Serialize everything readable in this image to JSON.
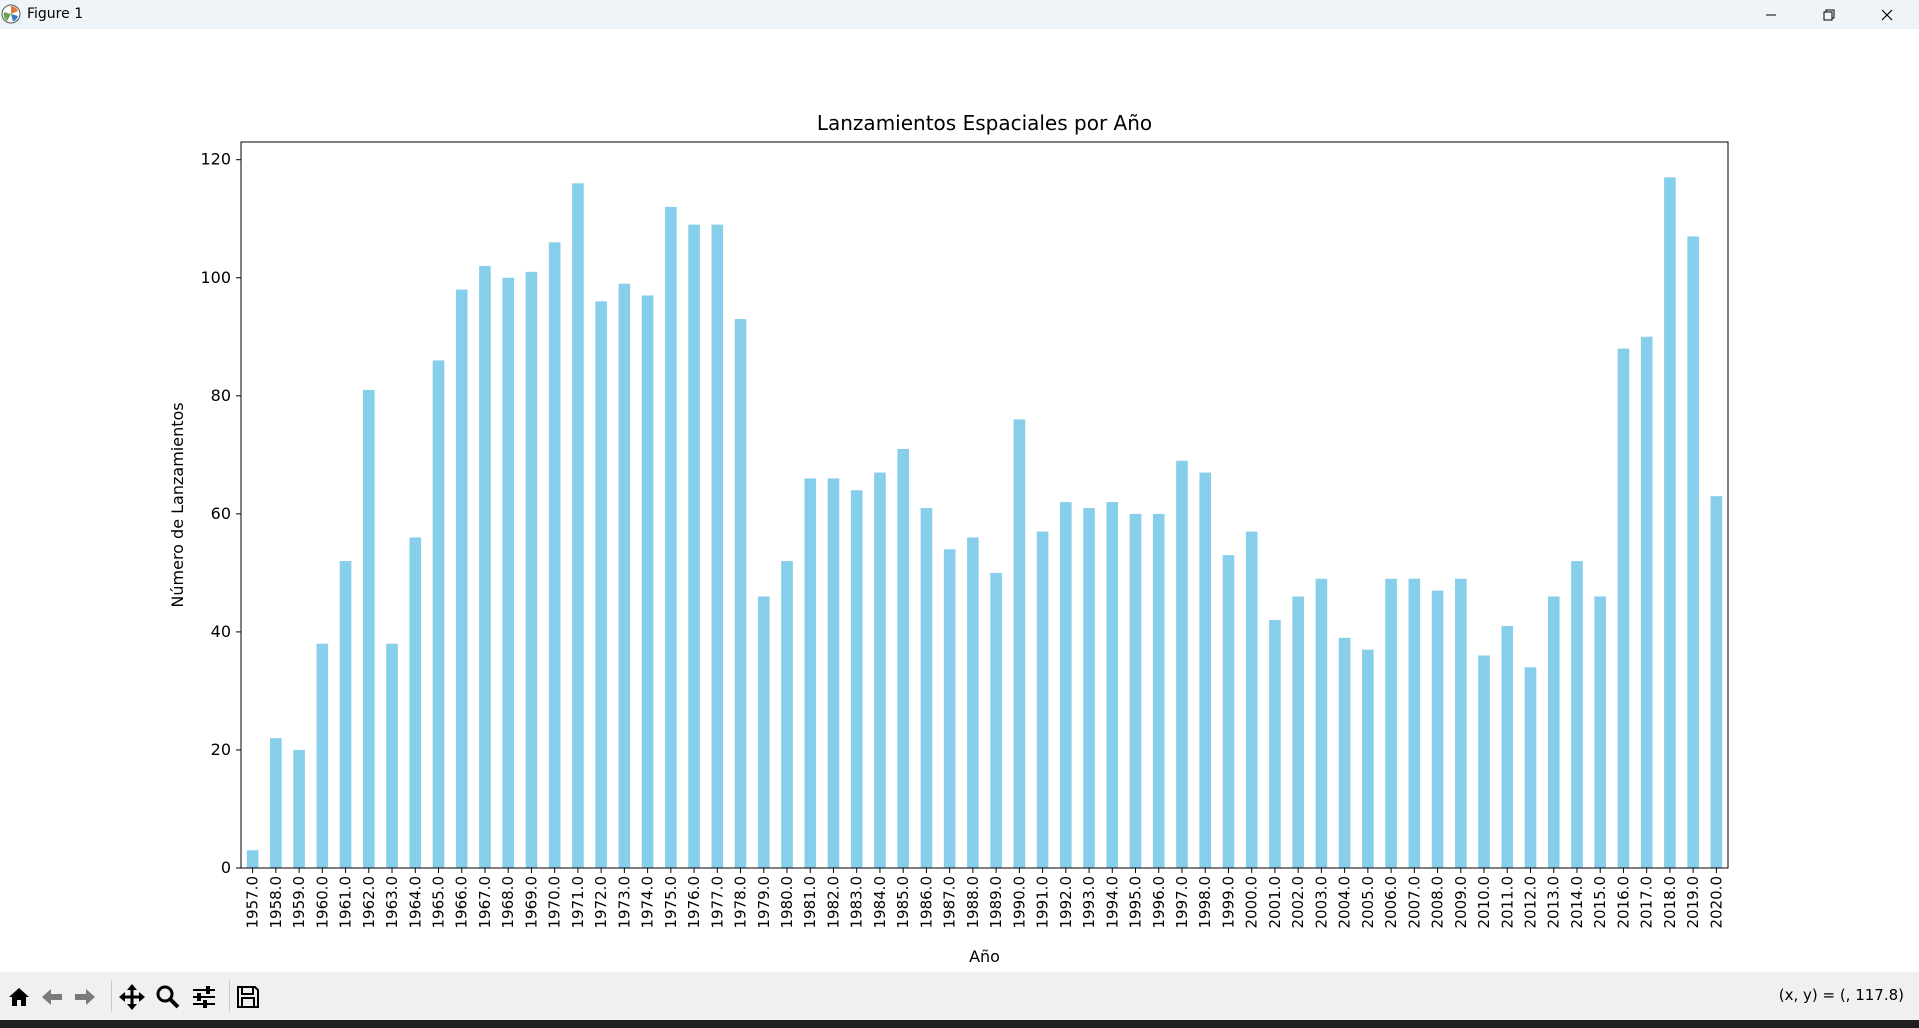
{
  "window": {
    "title": "Figure 1",
    "icons": [
      "matplotlib-icon",
      "minimize-icon",
      "restore-icon",
      "close-icon"
    ]
  },
  "toolbar": {
    "tools": [
      "home-icon",
      "back-icon",
      "forward-icon",
      "pan-icon",
      "zoom-icon",
      "configure-icon",
      "save-icon"
    ],
    "coords": "(x, y) = (, 117.8)"
  },
  "colors": {
    "bar": "#87ceeb",
    "axes": "#000000",
    "titlebar": "#eff4f9",
    "toolbar": "#f0f0f0"
  },
  "chart_data": {
    "type": "bar",
    "title": "Lanzamientos Espaciales por Año",
    "xlabel": "Año",
    "ylabel": "Número de Lanzamientos",
    "ylim": [
      0,
      123
    ],
    "yticks": [
      0,
      20,
      40,
      60,
      80,
      100,
      120
    ],
    "grid": false,
    "categories": [
      "1957.0",
      "1958.0",
      "1959.0",
      "1960.0",
      "1961.0",
      "1962.0",
      "1963.0",
      "1964.0",
      "1965.0",
      "1966.0",
      "1967.0",
      "1968.0",
      "1969.0",
      "1970.0",
      "1971.0",
      "1972.0",
      "1973.0",
      "1974.0",
      "1975.0",
      "1976.0",
      "1977.0",
      "1978.0",
      "1979.0",
      "1980.0",
      "1981.0",
      "1982.0",
      "1983.0",
      "1984.0",
      "1985.0",
      "1986.0",
      "1987.0",
      "1988.0",
      "1989.0",
      "1990.0",
      "1991.0",
      "1992.0",
      "1993.0",
      "1994.0",
      "1995.0",
      "1996.0",
      "1997.0",
      "1998.0",
      "1999.0",
      "2000.0",
      "2001.0",
      "2002.0",
      "2003.0",
      "2004.0",
      "2005.0",
      "2006.0",
      "2007.0",
      "2008.0",
      "2009.0",
      "2010.0",
      "2011.0",
      "2012.0",
      "2013.0",
      "2014.0",
      "2015.0",
      "2016.0",
      "2017.0",
      "2018.0",
      "2019.0",
      "2020.0"
    ],
    "values": [
      3,
      22,
      20,
      38,
      52,
      81,
      38,
      56,
      86,
      98,
      102,
      100,
      101,
      106,
      116,
      96,
      99,
      97,
      112,
      109,
      109,
      93,
      46,
      52,
      66,
      66,
      64,
      67,
      71,
      61,
      54,
      56,
      50,
      76,
      57,
      62,
      61,
      62,
      60,
      60,
      69,
      67,
      53,
      57,
      42,
      46,
      49,
      39,
      37,
      49,
      49,
      47,
      49,
      36,
      41,
      34,
      46,
      52,
      46,
      88,
      90,
      117,
      107,
      63
    ]
  }
}
